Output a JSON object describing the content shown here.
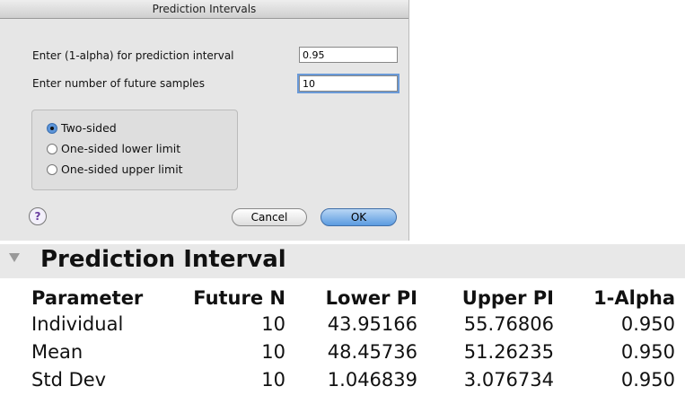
{
  "dialog": {
    "title": "Prediction Intervals",
    "fields": [
      {
        "label": "Enter (1-alpha) for prediction interval",
        "value": "0.95"
      },
      {
        "label": "Enter number of future samples",
        "value": "10"
      }
    ],
    "options": [
      "Two-sided",
      "One-sided lower limit",
      "One-sided upper limit"
    ],
    "selected": 0,
    "help": "?",
    "buttons": [
      "Cancel",
      "OK"
    ]
  },
  "report": {
    "title": "Prediction Interval",
    "columns": [
      "Parameter",
      "Future N",
      "Lower PI",
      "Upper PI",
      "1-Alpha"
    ],
    "rows": [
      [
        "Individual",
        "10",
        "43.95166",
        "55.76806",
        "0.950"
      ],
      [
        "Mean",
        "10",
        "48.45736",
        "51.26235",
        "0.950"
      ],
      [
        "Std Dev",
        "10",
        "1.046839",
        "3.076734",
        "0.950"
      ]
    ]
  }
}
